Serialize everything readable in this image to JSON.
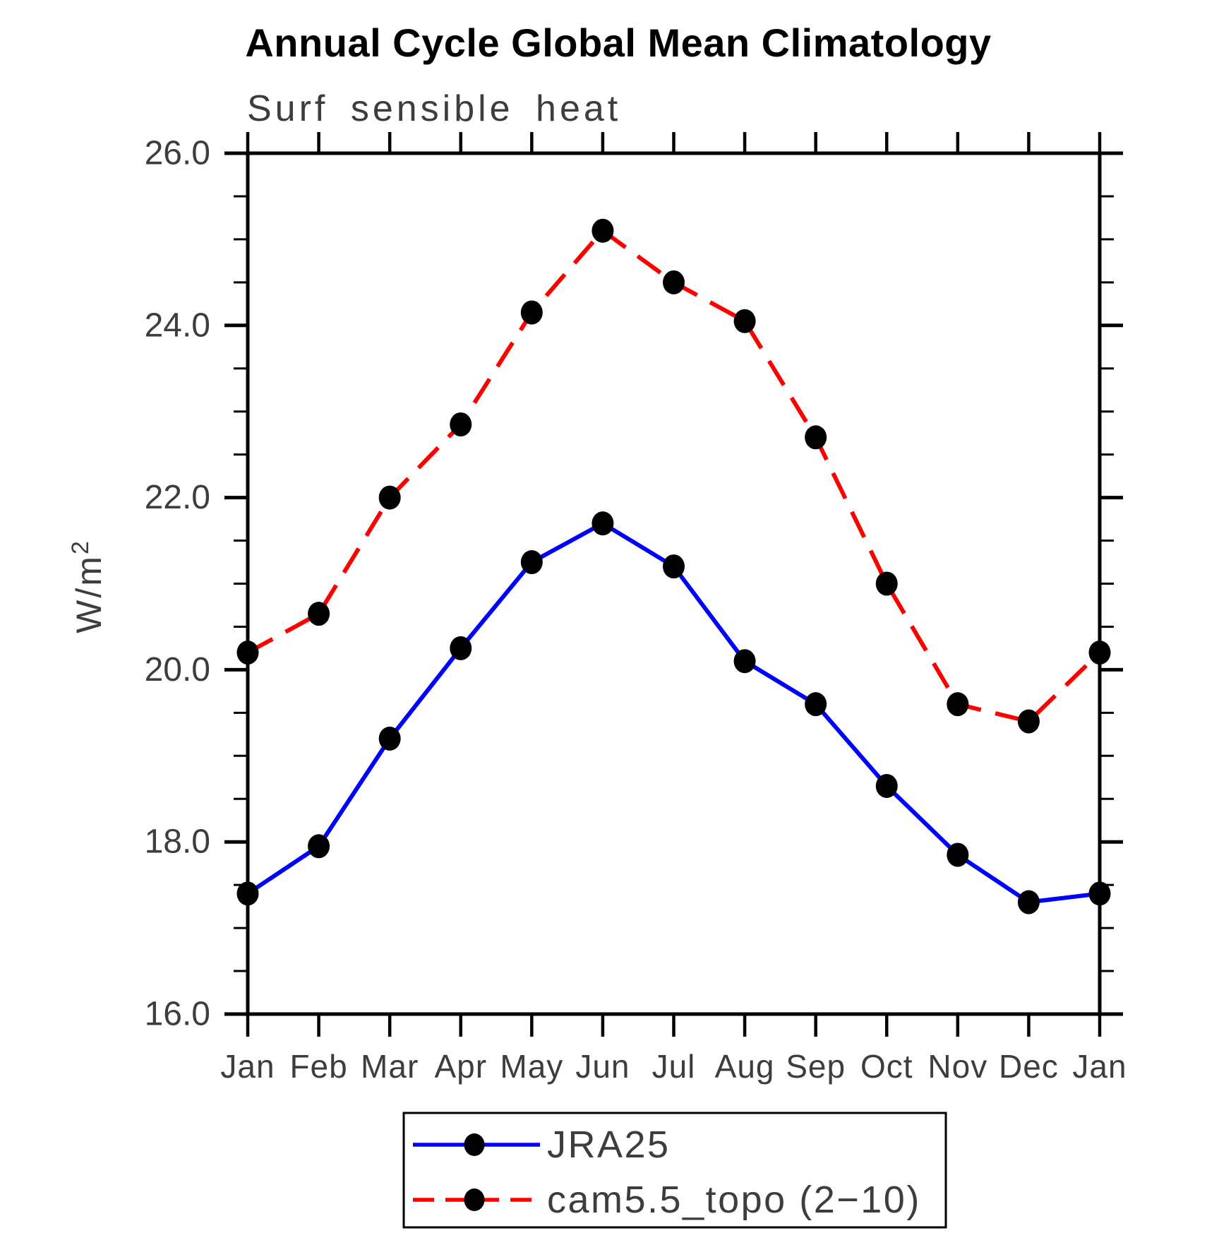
{
  "title": "Annual Cycle Global Mean Climatology",
  "subtitle": "Surf sensible heat",
  "y_axis": {
    "label_base": "W/m",
    "label_exponent": "2"
  },
  "chart_data": {
    "type": "line",
    "title": "Annual Cycle Global Mean Climatology",
    "subtitle": "Surf sensible heat",
    "ylabel": "W/m²",
    "xlabel": "",
    "categories": [
      "Jan",
      "Feb",
      "Mar",
      "Apr",
      "May",
      "Jun",
      "Jul",
      "Aug",
      "Sep",
      "Oct",
      "Nov",
      "Dec",
      "Jan"
    ],
    "series": [
      {
        "name": "JRA25",
        "color": "#0000ff",
        "line_style": "solid",
        "marker": "filled-circle",
        "marker_color": "#000000",
        "values": [
          17.4,
          17.95,
          19.2,
          20.25,
          21.25,
          21.7,
          21.2,
          20.1,
          19.6,
          18.65,
          17.85,
          17.3,
          17.4
        ]
      },
      {
        "name": "cam5.5_topo (2−10)",
        "color": "#ff0000",
        "line_style": "dashed",
        "marker": "filled-circle",
        "marker_color": "#000000",
        "values": [
          20.2,
          20.65,
          22.0,
          22.85,
          24.15,
          25.1,
          24.5,
          24.05,
          22.7,
          21.0,
          19.6,
          19.4,
          20.2
        ]
      }
    ],
    "ylim": [
      16.0,
      26.0
    ],
    "y_ticks": [
      {
        "value": 16.0,
        "label": "16.0"
      },
      {
        "value": 18.0,
        "label": "18.0"
      },
      {
        "value": 20.0,
        "label": "20.0"
      },
      {
        "value": 22.0,
        "label": "22.0"
      },
      {
        "value": 24.0,
        "label": "24.0"
      },
      {
        "value": 26.0,
        "label": "26.0"
      }
    ],
    "y_minor_tick_interval": 0.5,
    "grid": false,
    "frame": "box-with-outward-ticks",
    "legend_position": "bottom-center"
  },
  "colors": {
    "axis": "#000000",
    "marker": "#000000",
    "series_blue": "#0000ff",
    "series_red": "#ff0000",
    "label_text": "#3d3d3d",
    "title_text": "#000000",
    "background": "#ffffff"
  }
}
